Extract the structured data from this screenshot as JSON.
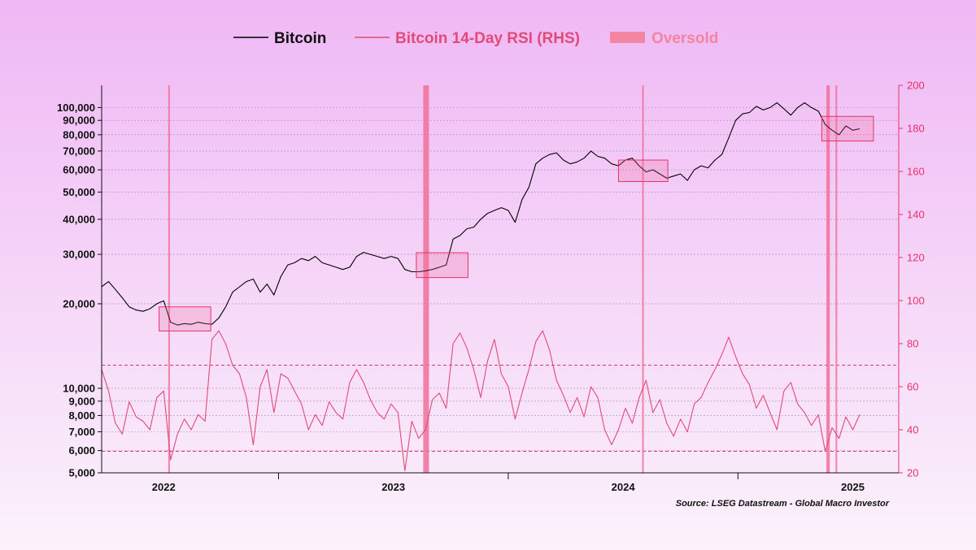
{
  "chart_data": {
    "type": "line",
    "title": "",
    "source": "Source: LSEG Datastream - Global Macro Investor",
    "colors": {
      "background_top": "#efb8f5",
      "background_bottom": "#fbf2fb",
      "bitcoin": "#000000",
      "rsi": "#e24a78",
      "oversold_fill": "#f0709a",
      "axis_right": "#e8306a",
      "legend_oversold": "#f2859f"
    },
    "legend": [
      {
        "key": "btc",
        "label": "Bitcoin"
      },
      {
        "key": "rsi",
        "label": "Bitcoin 14-Day RSI (RHS)"
      },
      {
        "key": "oversold",
        "label": "Oversold"
      }
    ],
    "x_axis": {
      "range": [
        2021.73,
        2025.2
      ],
      "labels": [
        {
          "label": "2022",
          "x": 2022.0
        },
        {
          "label": "2023",
          "x": 2023.0
        },
        {
          "label": "2024",
          "x": 2024.0
        },
        {
          "label": "2025",
          "x": 2025.0
        }
      ],
      "minor_ticks": [
        2022.5,
        2023.5,
        2024.5
      ]
    },
    "y_left": {
      "scale": "log",
      "range": [
        5000,
        120000
      ],
      "ticks": [
        {
          "v": 5000,
          "label": "5,000"
        },
        {
          "v": 6000,
          "label": "6,000"
        },
        {
          "v": 7000,
          "label": "7,000"
        },
        {
          "v": 8000,
          "label": "8,000"
        },
        {
          "v": 9000,
          "label": "9,000"
        },
        {
          "v": 10000,
          "label": "10,000"
        },
        {
          "v": 20000,
          "label": "20,000"
        },
        {
          "v": 30000,
          "label": "30,000"
        },
        {
          "v": 40000,
          "label": "40,000"
        },
        {
          "v": 50000,
          "label": "50,000"
        },
        {
          "v": 60000,
          "label": "60,000"
        },
        {
          "v": 70000,
          "label": "70,000"
        },
        {
          "v": 80000,
          "label": "80,000"
        },
        {
          "v": 90000,
          "label": "90,000"
        },
        {
          "v": 100000,
          "label": "100,000"
        }
      ]
    },
    "y_right": {
      "scale": "linear",
      "range": [
        20,
        200
      ],
      "ticks": [
        {
          "v": 20,
          "label": "20"
        },
        {
          "v": 40,
          "label": "40"
        },
        {
          "v": 60,
          "label": "60"
        },
        {
          "v": 80,
          "label": "80"
        },
        {
          "v": 100,
          "label": "100"
        },
        {
          "v": 120,
          "label": "120"
        },
        {
          "v": 140,
          "label": "140"
        },
        {
          "v": 160,
          "label": "160"
        },
        {
          "v": 180,
          "label": "180"
        },
        {
          "v": 200,
          "label": "200"
        }
      ]
    },
    "rsi_reference_lines": [
      30,
      70
    ],
    "gridlines_left": [
      6000,
      7000,
      8000,
      9000,
      10000,
      20000,
      30000,
      40000,
      50000,
      60000,
      70000,
      80000,
      90000,
      100000
    ],
    "series": [
      {
        "name": "Bitcoin",
        "axis": "left",
        "x": [
          2021.73,
          2021.76,
          2021.79,
          2021.82,
          2021.85,
          2021.88,
          2021.91,
          2021.94,
          2021.97,
          2022.0,
          2022.03,
          2022.06,
          2022.09,
          2022.12,
          2022.15,
          2022.18,
          2022.21,
          2022.24,
          2022.27,
          2022.3,
          2022.33,
          2022.36,
          2022.39,
          2022.42,
          2022.45,
          2022.48,
          2022.51,
          2022.54,
          2022.57,
          2022.6,
          2022.63,
          2022.66,
          2022.69,
          2022.72,
          2022.75,
          2022.78,
          2022.81,
          2022.84,
          2022.87,
          2022.9,
          2022.93,
          2022.96,
          2022.99,
          2023.02,
          2023.05,
          2023.08,
          2023.11,
          2023.14,
          2023.17,
          2023.2,
          2023.23,
          2023.26,
          2023.29,
          2023.32,
          2023.35,
          2023.38,
          2023.41,
          2023.44,
          2023.47,
          2023.5,
          2023.53,
          2023.56,
          2023.59,
          2023.62,
          2023.65,
          2023.68,
          2023.71,
          2023.74,
          2023.77,
          2023.8,
          2023.83,
          2023.86,
          2023.89,
          2023.92,
          2023.95,
          2023.98,
          2024.01,
          2024.04,
          2024.07,
          2024.1,
          2024.13,
          2024.16,
          2024.19,
          2024.22,
          2024.25,
          2024.28,
          2024.31,
          2024.34,
          2024.37,
          2024.4,
          2024.43,
          2024.46,
          2024.49,
          2024.52,
          2024.55,
          2024.58,
          2024.61,
          2024.64,
          2024.67,
          2024.7,
          2024.73,
          2024.76,
          2024.79,
          2024.82,
          2024.85,
          2024.88,
          2024.91,
          2024.94,
          2024.97,
          2025.0,
          2025.03
        ],
        "values": [
          23000,
          24000,
          22500,
          21000,
          19500,
          19000,
          18800,
          19200,
          20000,
          20500,
          17200,
          16800,
          17000,
          16900,
          17200,
          17000,
          16900,
          17800,
          19500,
          22000,
          23000,
          24000,
          24500,
          22000,
          23500,
          21500,
          25000,
          27500,
          28000,
          29000,
          28500,
          29500,
          28000,
          27500,
          27000,
          26500,
          27000,
          29500,
          30500,
          30000,
          29500,
          29000,
          29500,
          29000,
          26500,
          26000,
          26000,
          26200,
          26500,
          27000,
          27500,
          34000,
          35000,
          37000,
          37500,
          40000,
          42000,
          43000,
          44000,
          43000,
          39000,
          47000,
          52000,
          63000,
          66000,
          68000,
          69000,
          65000,
          63000,
          64000,
          66000,
          70000,
          67000,
          66000,
          63000,
          62000,
          65000,
          66000,
          62000,
          59000,
          60000,
          58000,
          56000,
          57000,
          58000,
          55000,
          60000,
          62000,
          61000,
          65000,
          68000,
          78000,
          90000,
          95000,
          96000,
          101000,
          98000,
          100000,
          104000,
          99000,
          94000,
          100000,
          104000,
          100000,
          97000,
          87000,
          83000,
          80000,
          86000,
          83000,
          84000
        ]
      },
      {
        "name": "Bitcoin 14-Day RSI (RHS)",
        "axis": "right",
        "x": [
          2021.73,
          2021.76,
          2021.79,
          2021.82,
          2021.85,
          2021.88,
          2021.91,
          2021.94,
          2021.97,
          2022.0,
          2022.03,
          2022.06,
          2022.09,
          2022.12,
          2022.15,
          2022.18,
          2022.21,
          2022.24,
          2022.27,
          2022.3,
          2022.33,
          2022.36,
          2022.39,
          2022.42,
          2022.45,
          2022.48,
          2022.51,
          2022.54,
          2022.57,
          2022.6,
          2022.63,
          2022.66,
          2022.69,
          2022.72,
          2022.75,
          2022.78,
          2022.81,
          2022.84,
          2022.87,
          2022.9,
          2022.93,
          2022.96,
          2022.99,
          2023.02,
          2023.05,
          2023.08,
          2023.11,
          2023.14,
          2023.17,
          2023.2,
          2023.23,
          2023.26,
          2023.29,
          2023.32,
          2023.35,
          2023.38,
          2023.41,
          2023.44,
          2023.47,
          2023.5,
          2023.53,
          2023.56,
          2023.59,
          2023.62,
          2023.65,
          2023.68,
          2023.71,
          2023.74,
          2023.77,
          2023.8,
          2023.83,
          2023.86,
          2023.89,
          2023.92,
          2023.95,
          2023.98,
          2024.01,
          2024.04,
          2024.07,
          2024.1,
          2024.13,
          2024.16,
          2024.19,
          2024.22,
          2024.25,
          2024.28,
          2024.31,
          2024.34,
          2024.37,
          2024.4,
          2024.43,
          2024.46,
          2024.49,
          2024.52,
          2024.55,
          2024.58,
          2024.61,
          2024.64,
          2024.67,
          2024.7,
          2024.73,
          2024.76,
          2024.79,
          2024.82,
          2024.85,
          2024.88,
          2024.91,
          2024.94,
          2024.97,
          2025.0,
          2025.03
        ],
        "values": [
          68,
          58,
          43,
          38,
          53,
          46,
          44,
          40,
          55,
          58,
          26,
          38,
          45,
          40,
          47,
          44,
          82,
          86,
          80,
          70,
          66,
          55,
          33,
          60,
          68,
          48,
          66,
          64,
          58,
          52,
          40,
          47,
          42,
          53,
          48,
          45,
          62,
          68,
          62,
          54,
          48,
          45,
          52,
          48,
          21,
          44,
          36,
          40,
          54,
          57,
          50,
          80,
          85,
          78,
          68,
          55,
          72,
          82,
          66,
          60,
          45,
          57,
          68,
          81,
          86,
          77,
          63,
          56,
          48,
          55,
          46,
          60,
          55,
          40,
          33,
          40,
          50,
          43,
          55,
          63,
          48,
          54,
          43,
          37,
          45,
          39,
          52,
          55,
          62,
          68,
          75,
          83,
          74,
          66,
          61,
          50,
          56,
          48,
          40,
          58,
          62,
          52,
          48,
          42,
          47,
          30,
          41,
          36,
          46,
          40,
          47
        ]
      }
    ],
    "oversold_bands": [
      [
        2022.02,
        2022.027
      ],
      [
        2023.13,
        2023.155
      ],
      [
        2024.083,
        2024.09
      ],
      [
        2024.885,
        2024.9
      ],
      [
        2024.925,
        2024.932
      ]
    ],
    "oversold_boxes": [
      {
        "x0": 2021.98,
        "x1": 2022.205,
        "y0": 16000,
        "y1": 19500
      },
      {
        "x0": 2023.1,
        "x1": 2023.325,
        "y0": 24800,
        "y1": 30400
      },
      {
        "x0": 2023.98,
        "x1": 2024.195,
        "y0": 54500,
        "y1": 65000
      },
      {
        "x0": 2024.865,
        "x1": 2025.09,
        "y0": 76000,
        "y1": 93000
      }
    ]
  }
}
